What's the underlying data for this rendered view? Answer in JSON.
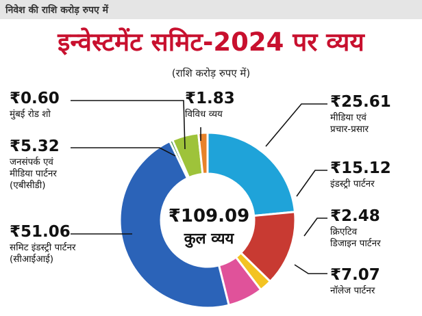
{
  "header": {
    "topbar": "निवेश की राशि करोड़ रुपए में",
    "title": "इन्वेस्टमेंट समिट-2024 पर व्यय",
    "subtitle": "(राशि करोड़ रुपए में)"
  },
  "chart_data": {
    "type": "pie",
    "title": "इन्वेस्टमेंट समिट-2024 पर व्यय",
    "subtitle": "(राशि करोड़ रुपए में)",
    "total": {
      "value": "₹109.09",
      "label": "कुल व्यय"
    },
    "slices": [
      {
        "name": "मीडिया एवं प्रचार-प्रसार",
        "value": 25.61,
        "display": "₹25.61",
        "color": "#1fa3d9"
      },
      {
        "name": "इंडस्ट्री पार्टनर",
        "value": 15.12,
        "display": "₹15.12",
        "color": "#c83a32"
      },
      {
        "name": "क्रिएटिव डिजाइन पार्टनर",
        "value": 2.48,
        "display": "₹2.48",
        "color": "#f3c322"
      },
      {
        "name": "नॉलेज पार्टनर",
        "value": 7.07,
        "display": "₹7.07",
        "color": "#e0529a"
      },
      {
        "name": "समिट इंडस्ट्री पार्टनर (सीआईआई)",
        "value": 51.06,
        "display": "₹51.06",
        "color": "#2b63b8"
      },
      {
        "name": "मुंबई रोड शो",
        "value": 0.6,
        "display": "₹0.60",
        "color": "#3b8e3b"
      },
      {
        "name": "जनसंपर्क एवं मीडिया पार्टनर (एबीसीडी)",
        "value": 5.32,
        "display": "₹5.32",
        "color": "#9ec33a"
      },
      {
        "name": "विविध व्यय",
        "value": 1.83,
        "display": "₹1.83",
        "color": "#e8822a"
      }
    ]
  },
  "labels": {
    "road_show": {
      "value": "₹0.60",
      "lines": [
        "मुंबई रोड शो"
      ]
    },
    "pr_media": {
      "value": "₹5.32",
      "lines": [
        "जनसंपर्क एवं",
        "मीडिया पार्टनर",
        "(एबीसीडी)"
      ]
    },
    "cii": {
      "value": "₹51.06",
      "lines": [
        "समिट इंडस्ट्री पार्टनर",
        "(सीआईआई)"
      ]
    },
    "misc": {
      "value": "₹1.83",
      "lines": [
        "विविध व्यय"
      ]
    },
    "media": {
      "value": "₹25.61",
      "lines": [
        "मीडिया एवं",
        "प्रचार-प्रसार"
      ]
    },
    "industry": {
      "value": "₹15.12",
      "lines": [
        "इंडस्ट्री पार्टनर"
      ]
    },
    "creative": {
      "value": "₹2.48",
      "lines": [
        "क्रिएटिव",
        "डिजाइन पार्टनर"
      ]
    },
    "knowledge": {
      "value": "₹7.07",
      "lines": [
        "नॉलेज पार्टनर"
      ]
    }
  }
}
